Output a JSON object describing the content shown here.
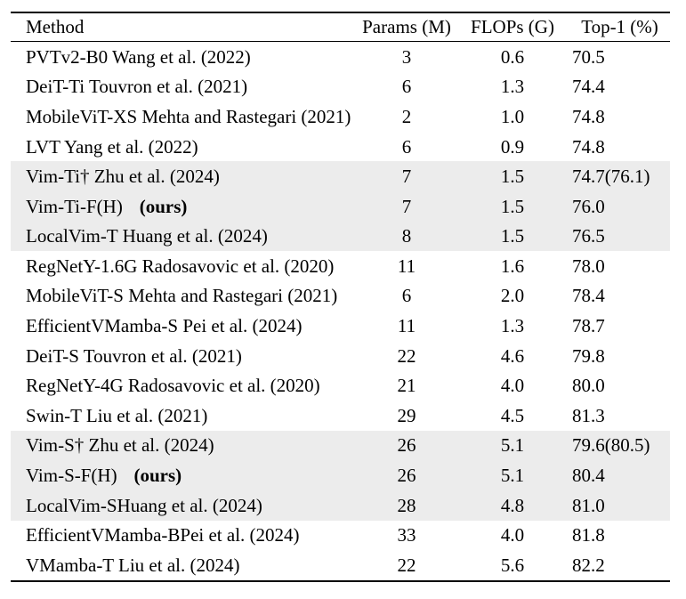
{
  "colors": {
    "background": "#ffffff",
    "text": "#000000",
    "rule": "#000000",
    "row_highlight": "#ececec"
  },
  "table": {
    "columns": [
      {
        "label": "Method"
      },
      {
        "label": "Params (M)"
      },
      {
        "label": "FLOPs (G)"
      },
      {
        "label": "Top-1 (%)"
      }
    ],
    "rows": [
      {
        "method": "PVTv2-B0 Wang et al. (2022)",
        "params": "3",
        "flops": "0.6",
        "top1": "70.5",
        "highlighted": false
      },
      {
        "method": "DeiT-Ti Touvron et al. (2021)",
        "params": "6",
        "flops": "1.3",
        "top1": "74.4",
        "highlighted": false
      },
      {
        "method": "MobileViT-XS Mehta and Rastegari (2021)",
        "params": "2",
        "flops": "1.0",
        "top1": "74.8",
        "highlighted": false
      },
      {
        "method": "LVT Yang et al. (2022)",
        "params": "6",
        "flops": "0.9",
        "top1": "74.8",
        "highlighted": false
      },
      {
        "method": "Vim-Ti† Zhu et al. (2024)",
        "params": "7",
        "flops": "1.5",
        "top1": "74.7(76.1)",
        "highlighted": true
      },
      {
        "method": "Vim-Ti-F(H)",
        "ours_label": "(ours)",
        "params": "7",
        "flops": "1.5",
        "top1": "76.0",
        "highlighted": true
      },
      {
        "method": "LocalVim-T Huang et al. (2024)",
        "params": "8",
        "flops": "1.5",
        "top1": "76.5",
        "highlighted": true
      },
      {
        "method": "RegNetY-1.6G Radosavovic et al. (2020)",
        "params": "11",
        "flops": "1.6",
        "top1": "78.0",
        "highlighted": false
      },
      {
        "method": "MobileViT-S Mehta and Rastegari (2021)",
        "params": "6",
        "flops": "2.0",
        "top1": "78.4",
        "highlighted": false
      },
      {
        "method": "EfficientVMamba-S Pei et al. (2024)",
        "params": "11",
        "flops": "1.3",
        "top1": "78.7",
        "highlighted": false
      },
      {
        "method": "DeiT-S Touvron et al. (2021)",
        "params": "22",
        "flops": "4.6",
        "top1": "79.8",
        "highlighted": false
      },
      {
        "method": "RegNetY-4G Radosavovic et al. (2020)",
        "params": "21",
        "flops": "4.0",
        "top1": "80.0",
        "highlighted": false
      },
      {
        "method": "Swin-T Liu et al. (2021)",
        "params": "29",
        "flops": "4.5",
        "top1": "81.3",
        "highlighted": false
      },
      {
        "method": "Vim-S† Zhu et al. (2024)",
        "params": "26",
        "flops": "5.1",
        "top1": "79.6(80.5)",
        "highlighted": true
      },
      {
        "method": "Vim-S-F(H)",
        "ours_label": "(ours)",
        "params": "26",
        "flops": "5.1",
        "top1": "80.4",
        "highlighted": true
      },
      {
        "method": "LocalVim-SHuang et al. (2024)",
        "params": "28",
        "flops": "4.8",
        "top1": "81.0",
        "highlighted": true
      },
      {
        "method": "EfficientVMamba-BPei et al. (2024)",
        "params": "33",
        "flops": "4.0",
        "top1": "81.8",
        "highlighted": false
      },
      {
        "method": "VMamba-T Liu et al. (2024)",
        "params": "22",
        "flops": "5.6",
        "top1": "82.2",
        "highlighted": false
      }
    ]
  }
}
